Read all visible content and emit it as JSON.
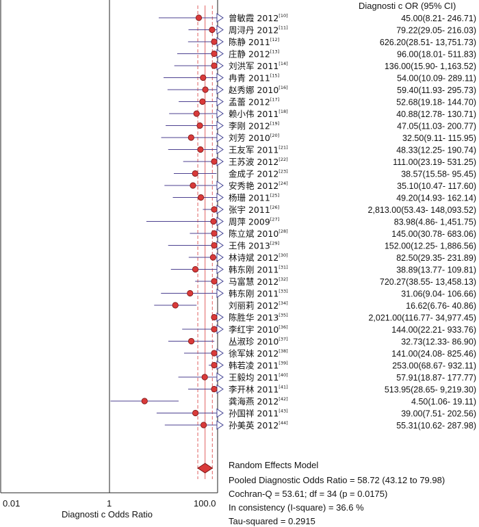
{
  "chart_data": {
    "type": "forest",
    "header": "Diagnosti c OR (95% CI)",
    "x_scale": "log",
    "xlim": [
      0.01,
      100
    ],
    "tick_labels": [
      "0.01",
      "1",
      "100.0"
    ],
    "xlabel": "Diagnosti c Odds Ratio",
    "pooled": {
      "or": 58.72,
      "ci_low": 43.12,
      "ci_high": 79.98
    },
    "colors": {
      "point_fill": "#d93a3a",
      "point_stroke": "#7a1414",
      "ci_line": "#4b3f8f",
      "ref_line": "#e06060",
      "arrow": "#3c3c90"
    },
    "studies": [
      {
        "name": "曾敏霞 2012",
        "ref": "[10]",
        "or": 45.0,
        "lo": 8.21,
        "hi": 246.71,
        "text": "45.00(8.21- 246.71)"
      },
      {
        "name": "周浔丹 2012",
        "ref": "[11]",
        "or": 79.22,
        "lo": 29.05,
        "hi": 216.03,
        "text": "79.22(29.05- 216.03)"
      },
      {
        "name": "陈静 2011",
        "ref": "[12]",
        "or": 626.2,
        "lo": 28.51,
        "hi": 13751.73,
        "text": "626.20(28.51- 13,751.73)"
      },
      {
        "name": "庄静 2012",
        "ref": "[13]",
        "or": 96.0,
        "lo": 18.01,
        "hi": 511.83,
        "text": "96.00(18.01- 511.83)"
      },
      {
        "name": "刘洪军 2011",
        "ref": "[14]",
        "or": 136.0,
        "lo": 15.9,
        "hi": 1163.52,
        "text": "136.00(15.90- 1,163.52)"
      },
      {
        "name": "冉青 2011",
        "ref": "[15]",
        "or": 54.0,
        "lo": 10.09,
        "hi": 289.11,
        "text": "54.00(10.09- 289.11)"
      },
      {
        "name": "赵秀娜 2010",
        "ref": "[16]",
        "or": 59.4,
        "lo": 11.93,
        "hi": 295.73,
        "text": "59.40(11.93- 295.73)"
      },
      {
        "name": "孟蕾 2012",
        "ref": "[17]",
        "or": 52.68,
        "lo": 19.18,
        "hi": 144.7,
        "text": "52.68(19.18- 144.70)"
      },
      {
        "name": "赖小伟 2011",
        "ref": "[18]",
        "or": 40.88,
        "lo": 12.78,
        "hi": 130.71,
        "text": "40.88(12.78- 130.71)"
      },
      {
        "name": "李刚 2012",
        "ref": "[19]",
        "or": 47.05,
        "lo": 11.03,
        "hi": 200.77,
        "text": "47.05(11.03- 200.77)"
      },
      {
        "name": "刘芳 2010",
        "ref": "[20]",
        "or": 32.5,
        "lo": 9.11,
        "hi": 115.95,
        "text": "32.50(9.11- 115.95)"
      },
      {
        "name": "王友军 2011",
        "ref": "[21]",
        "or": 48.33,
        "lo": 12.25,
        "hi": 190.74,
        "text": "48.33(12.25- 190.74)"
      },
      {
        "name": "王苏波 2012",
        "ref": "[22]",
        "or": 111.0,
        "lo": 23.19,
        "hi": 531.25,
        "text": "111.00(23.19- 531.25)"
      },
      {
        "name": "金成子 2012",
        "ref": "[23]",
        "or": 38.57,
        "lo": 15.58,
        "hi": 95.45,
        "text": "38.57(15.58- 95.45)"
      },
      {
        "name": "安秀艳 2012",
        "ref": "[24]",
        "or": 35.1,
        "lo": 10.47,
        "hi": 117.6,
        "text": "35.10(10.47- 117.60)"
      },
      {
        "name": "杨珊 2011",
        "ref": "[25]",
        "or": 49.2,
        "lo": 14.93,
        "hi": 162.14,
        "text": "49.20(14.93- 162.14)"
      },
      {
        "name": "张宇 2011",
        "ref": "[26]",
        "or": 2813.0,
        "lo": 53.43,
        "hi": 148093.52,
        "text": "2,813.00(53.43- 148,093.52)"
      },
      {
        "name": "周萍 2009",
        "ref": "[27]",
        "or": 83.98,
        "lo": 4.86,
        "hi": 1451.75,
        "text": "83.98(4.86- 1,451.75)"
      },
      {
        "name": "陈立斌 2010",
        "ref": "[28]",
        "or": 145.0,
        "lo": 30.78,
        "hi": 683.06,
        "text": "145.00(30.78- 683.06)"
      },
      {
        "name": "王伟 2013",
        "ref": "[29]",
        "or": 152.0,
        "lo": 12.25,
        "hi": 1886.56,
        "text": "152.00(12.25- 1,886.56)"
      },
      {
        "name": "林诗斌 2012",
        "ref": "[30]",
        "or": 82.5,
        "lo": 29.35,
        "hi": 231.89,
        "text": "82.50(29.35- 231.89)"
      },
      {
        "name": "韩东刚 2011",
        "ref": "[31]",
        "or": 38.89,
        "lo": 13.77,
        "hi": 109.81,
        "text": "38.89(13.77- 109.81)"
      },
      {
        "name": "马富慧 2012",
        "ref": "[32]",
        "or": 720.27,
        "lo": 38.55,
        "hi": 13458.13,
        "text": "720.27(38.55- 13,458.13)"
      },
      {
        "name": "韩东刚 2011",
        "ref": "[33]",
        "or": 31.06,
        "lo": 9.04,
        "hi": 106.66,
        "text": "31.06(9.04- 106.66)"
      },
      {
        "name": "刘丽莉 2012",
        "ref": "[34]",
        "or": 16.62,
        "lo": 6.76,
        "hi": 40.86,
        "text": "16.62(6.76- 40.86)"
      },
      {
        "name": "陈胜华 2013",
        "ref": "[35]",
        "or": 2021.0,
        "lo": 116.77,
        "hi": 34977.45,
        "text": "2,021.00(116.77- 34,977.45)"
      },
      {
        "name": "李红宇 2010",
        "ref": "[36]",
        "or": 144.0,
        "lo": 22.21,
        "hi": 933.76,
        "text": "144.00(22.21- 933.76)"
      },
      {
        "name": "丛淑珍 2010",
        "ref": "[37]",
        "or": 32.73,
        "lo": 12.33,
        "hi": 86.9,
        "text": "32.73(12.33- 86.90)"
      },
      {
        "name": "徐军妹 2012",
        "ref": "[38]",
        "or": 141.0,
        "lo": 24.08,
        "hi": 825.46,
        "text": "141.00(24.08- 825.46)"
      },
      {
        "name": "韩若凌 2011",
        "ref": "[39]",
        "or": 253.0,
        "lo": 68.67,
        "hi": 932.11,
        "text": "253.00(68.67- 932.11)"
      },
      {
        "name": "王毅均 2011",
        "ref": "[40]",
        "or": 57.91,
        "lo": 18.87,
        "hi": 177.77,
        "text": "57.91(18.87- 177.77)"
      },
      {
        "name": "李开林 2011",
        "ref": "[41]",
        "or": 513.95,
        "lo": 28.65,
        "hi": 9219.3,
        "text": "513.95(28.65- 9,219.30)"
      },
      {
        "name": "龚海燕 2012",
        "ref": "[42]",
        "or": 4.5,
        "lo": 1.06,
        "hi": 19.11,
        "text": "4.50(1.06- 19.11)"
      },
      {
        "name": "孙国祥 2011",
        "ref": "[43]",
        "or": 39.0,
        "lo": 7.51,
        "hi": 202.56,
        "text": "39.00(7.51- 202.56)"
      },
      {
        "name": "孙美英 2012",
        "ref": "[44]",
        "or": 55.31,
        "lo": 10.62,
        "hi": 287.98,
        "text": "55.31(10.62- 287.98)"
      }
    ]
  },
  "summary": {
    "model": "Random Effects Model",
    "pooled_text": "Pooled Diagnostic Odds Ratio = 58.72 (43.12 to 79.98)",
    "cochran": "Cochran-Q = 53.61; df = 34 (p = 0.0175)",
    "inconsistency": "In consistency (I-square) = 36.6 %",
    "tau": "Tau-squared = 0.2915"
  }
}
